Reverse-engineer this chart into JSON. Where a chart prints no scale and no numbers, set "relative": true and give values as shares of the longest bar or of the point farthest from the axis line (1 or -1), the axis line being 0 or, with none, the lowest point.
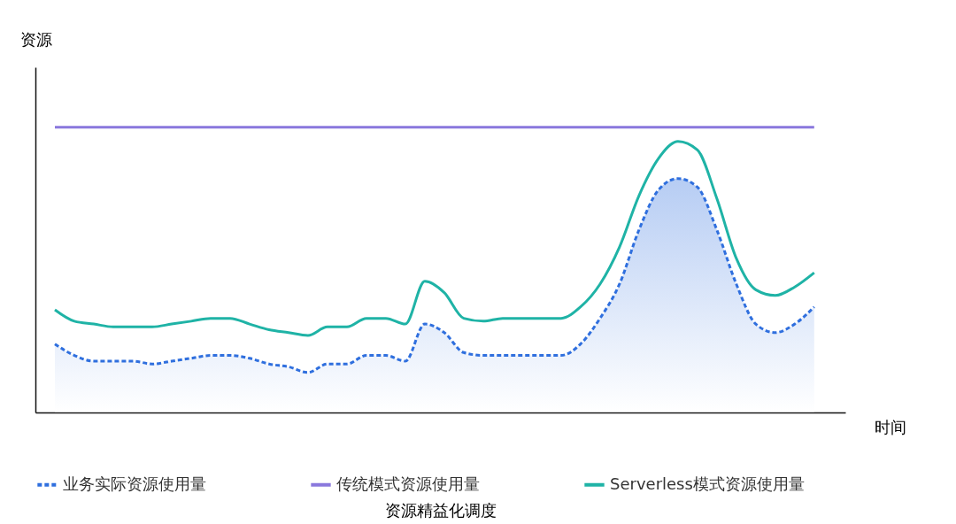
{
  "chart_data": {
    "type": "line",
    "title": "资源精益化调度",
    "xlabel": "时间",
    "ylabel": "资源",
    "relative": true,
    "legend": "bottom",
    "grid": false,
    "marker": "none",
    "categories": [
      null,
      null,
      null,
      null,
      null,
      null,
      null,
      null,
      null,
      null,
      null,
      null,
      null,
      null,
      null,
      null,
      null,
      null,
      null,
      null,
      null,
      null,
      null,
      null,
      null,
      null,
      null,
      null,
      null,
      null,
      null,
      null,
      null,
      null,
      null,
      null,
      null,
      null,
      null,
      null
    ],
    "series": [
      {
        "name": "业务实际资源使用量",
        "type": "area",
        "line_style": "dashed",
        "color": "#2f6fde",
        "values": [
          0.24,
          0.2,
          0.18,
          0.18,
          0.18,
          0.17,
          0.18,
          0.19,
          0.2,
          0.2,
          0.19,
          0.17,
          0.16,
          0.14,
          0.17,
          0.17,
          0.2,
          0.2,
          0.18,
          0.31,
          0.28,
          0.21,
          0.2,
          0.2,
          0.2,
          0.2,
          0.2,
          0.24,
          0.33,
          0.45,
          0.64,
          0.78,
          0.82,
          0.79,
          0.64,
          0.45,
          0.31,
          0.28,
          0.31,
          0.37
        ]
      },
      {
        "name": "传统模式资源使用量",
        "line_style": "solid",
        "color": "#8a78dd",
        "values": [
          1,
          1,
          1,
          1,
          1,
          1,
          1,
          1,
          1,
          1,
          1,
          1,
          1,
          1,
          1,
          1,
          1,
          1,
          1,
          1,
          1,
          1,
          1,
          1,
          1,
          1,
          1,
          1,
          1,
          1,
          1,
          1,
          1,
          1,
          1,
          1,
          1,
          1,
          1,
          1
        ]
      },
      {
        "name": "Serverless模式资源使用量",
        "line_style": "solid",
        "color": "#1fb3a6",
        "values": [
          0.36,
          0.32,
          0.31,
          0.3,
          0.3,
          0.3,
          0.31,
          0.32,
          0.33,
          0.33,
          0.31,
          0.29,
          0.28,
          0.27,
          0.3,
          0.3,
          0.33,
          0.33,
          0.31,
          0.46,
          0.42,
          0.33,
          0.32,
          0.33,
          0.33,
          0.33,
          0.33,
          0.37,
          0.45,
          0.58,
          0.76,
          0.89,
          0.95,
          0.92,
          0.75,
          0.54,
          0.43,
          0.41,
          0.44,
          0.49
        ]
      }
    ]
  }
}
